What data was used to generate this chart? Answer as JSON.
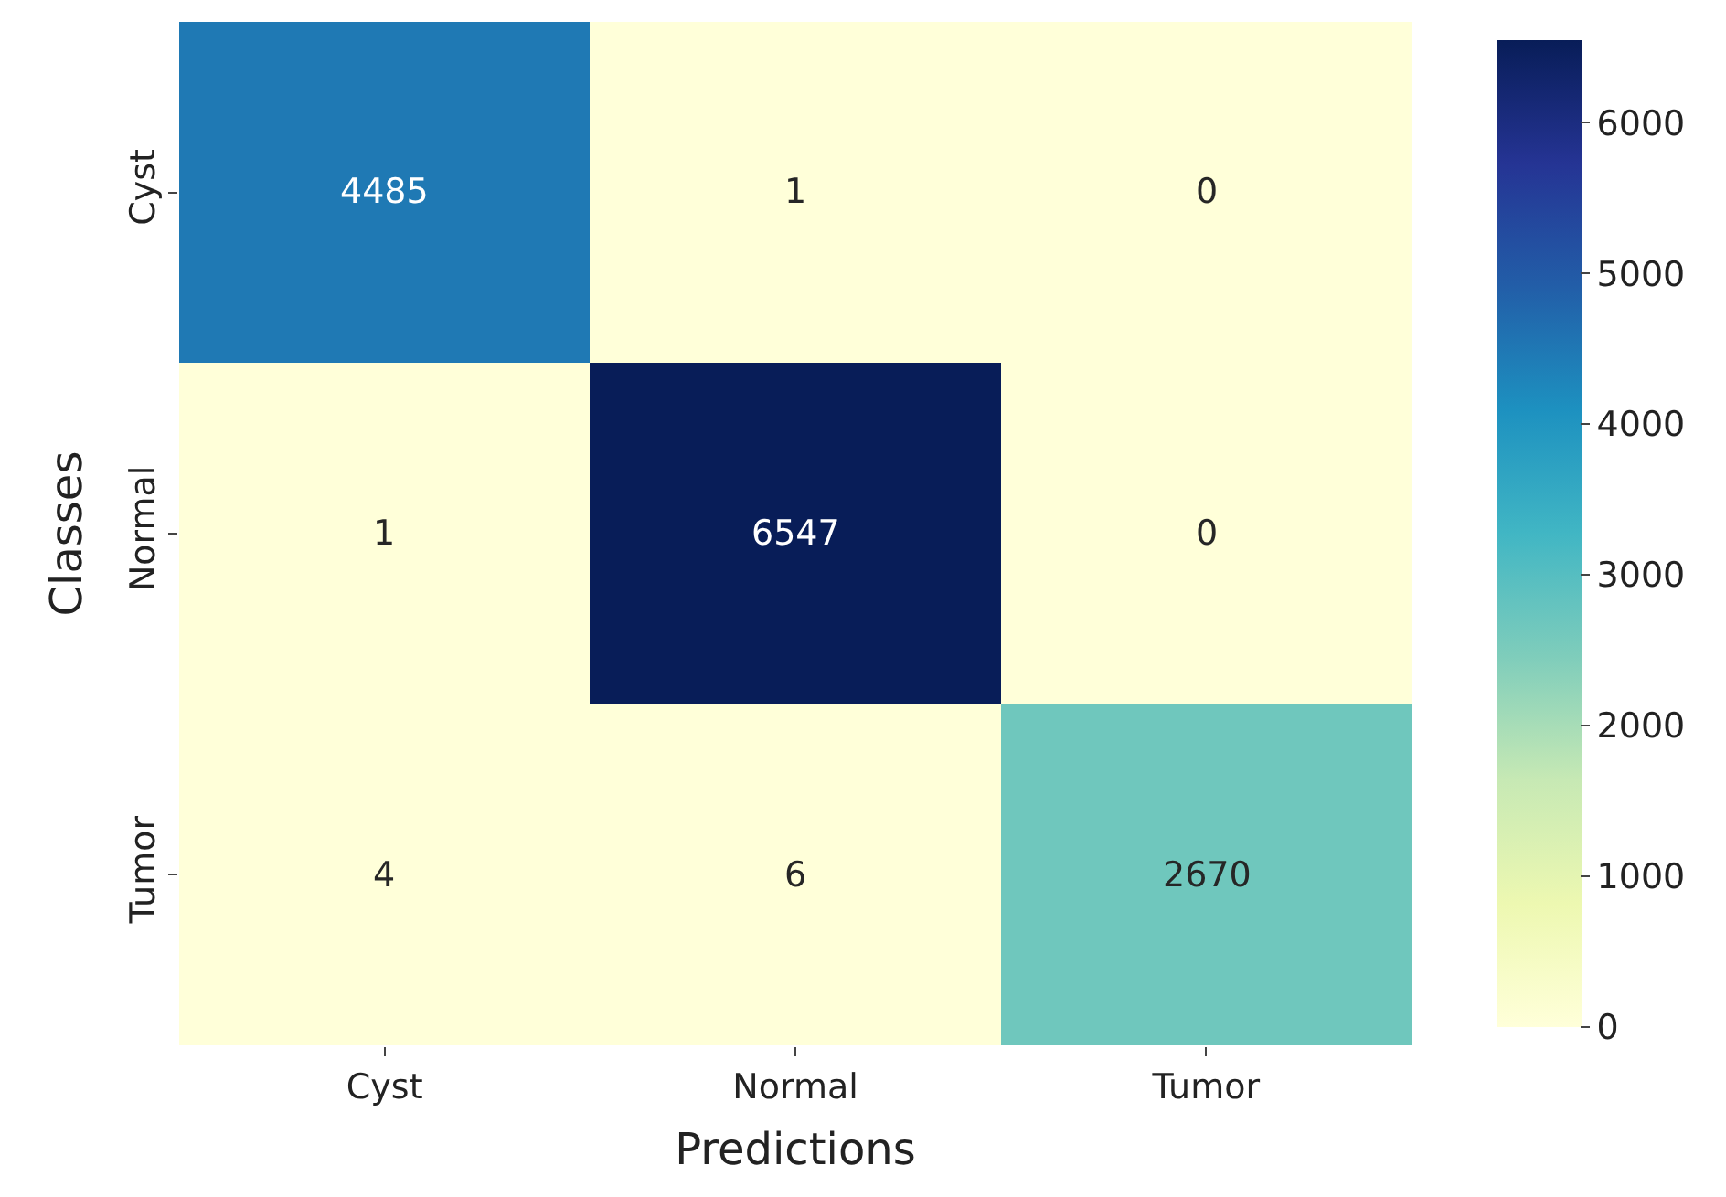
{
  "chart_data": {
    "type": "heatmap",
    "xlabel": "Predictions",
    "ylabel": "Classes",
    "categories": [
      "Cyst",
      "Normal",
      "Tumor"
    ],
    "y_categories": [
      "Cyst",
      "Normal",
      "Tumor"
    ],
    "cells": [
      [
        4485,
        1,
        0
      ],
      [
        1,
        6547,
        0
      ],
      [
        4,
        6,
        2670
      ]
    ],
    "clim": [
      0,
      6547
    ],
    "cticks": [
      0,
      1000,
      2000,
      3000,
      4000,
      5000,
      6000
    ],
    "data_labels": true
  }
}
